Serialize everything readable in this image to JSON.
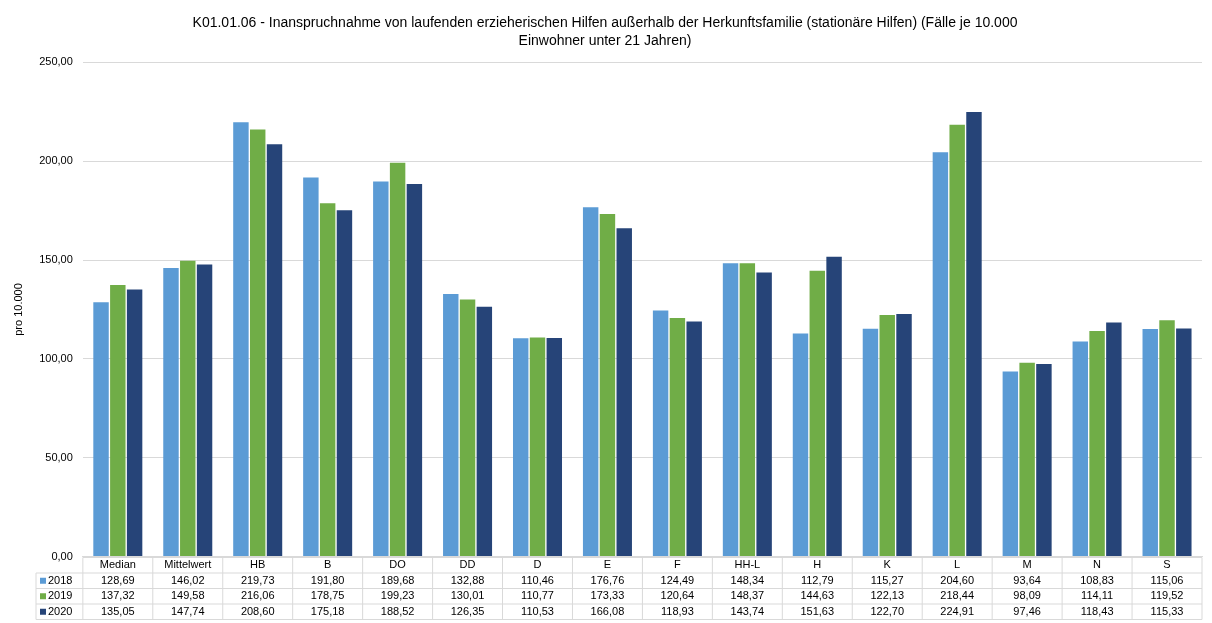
{
  "chart_data": {
    "type": "bar",
    "title": "K01.01.06 - Inanspruchnahme von laufenden erzieherischen Hilfen außerhalb der Herkunftsfamilie (stationäre Hilfen) (Fälle je 10.000 Einwohner unter 21 Jahren)",
    "ylabel": "pro 10.000",
    "categories": [
      "Median",
      "Mittelwert",
      "HB",
      "B",
      "DO",
      "DD",
      "D",
      "E",
      "F",
      "HH-L",
      "H",
      "K",
      "L",
      "M",
      "N",
      "S"
    ],
    "series": [
      {
        "name": "2018",
        "color": "#5b9bd5",
        "values": [
          128.69,
          146.02,
          219.73,
          191.8,
          189.68,
          132.88,
          110.46,
          176.76,
          124.49,
          148.34,
          112.79,
          115.27,
          204.6,
          93.64,
          108.83,
          115.06
        ],
        "value_labels": [
          "128,69",
          "146,02",
          "219,73",
          "191,80",
          "189,68",
          "132,88",
          "110,46",
          "176,76",
          "124,49",
          "148,34",
          "112,79",
          "115,27",
          "204,60",
          "93,64",
          "108,83",
          "115,06"
        ]
      },
      {
        "name": "2019",
        "color": "#70ad47",
        "values": [
          137.32,
          149.58,
          216.06,
          178.75,
          199.23,
          130.01,
          110.77,
          173.33,
          120.64,
          148.37,
          144.63,
          122.13,
          218.44,
          98.09,
          114.11,
          119.52
        ],
        "value_labels": [
          "137,32",
          "149,58",
          "216,06",
          "178,75",
          "199,23",
          "130,01",
          "110,77",
          "173,33",
          "120,64",
          "148,37",
          "144,63",
          "122,13",
          "218,44",
          "98,09",
          "114,11",
          "119,52"
        ]
      },
      {
        "name": "2020",
        "color": "#264478",
        "values": [
          135.05,
          147.74,
          208.6,
          175.18,
          188.52,
          126.35,
          110.53,
          166.08,
          118.93,
          143.74,
          151.63,
          122.7,
          224.91,
          97.46,
          118.43,
          115.33
        ],
        "value_labels": [
          "135,05",
          "147,74",
          "208,60",
          "175,18",
          "188,52",
          "126,35",
          "110,53",
          "166,08",
          "118,93",
          "143,74",
          "151,63",
          "122,70",
          "224,91",
          "97,46",
          "118,43",
          "115,33"
        ]
      }
    ],
    "ylim": [
      0,
      250
    ],
    "yticks": [
      {
        "value": 0,
        "label": "0,00"
      },
      {
        "value": 50,
        "label": "50,00"
      },
      {
        "value": 100,
        "label": "100,00"
      },
      {
        "value": 150,
        "label": "150,00"
      },
      {
        "value": 200,
        "label": "200,00"
      },
      {
        "value": 250,
        "label": "250,00"
      }
    ],
    "grid": "y",
    "legend": "bottom"
  }
}
